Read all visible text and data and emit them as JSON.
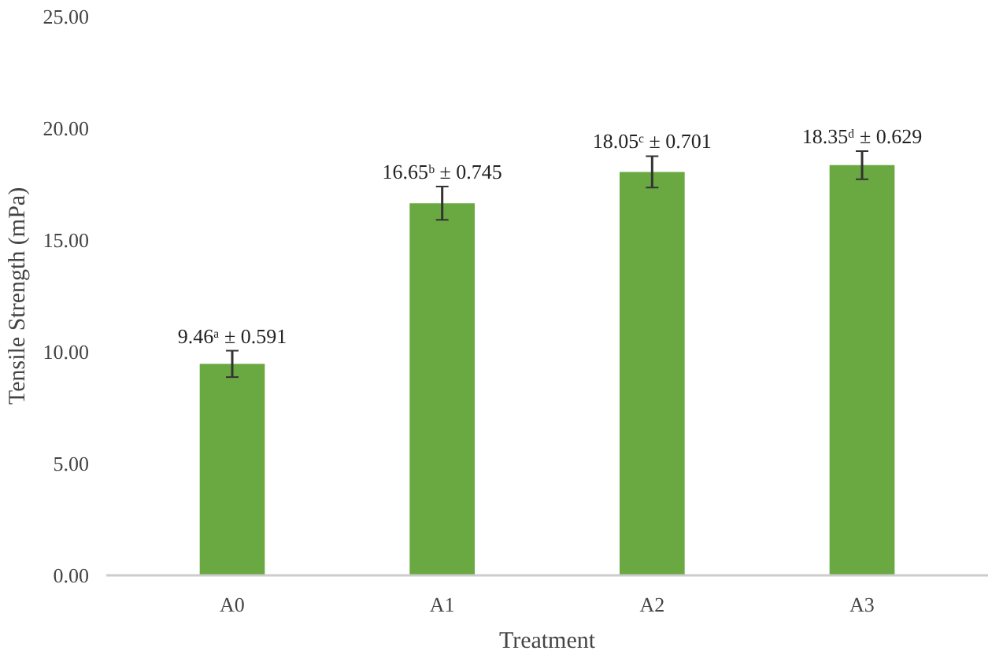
{
  "chart_data": {
    "type": "bar",
    "xlabel": "Treatment",
    "ylabel": "Tensile Strength (mPa)",
    "categories": [
      "A0",
      "A1",
      "A2",
      "A3"
    ],
    "values": [
      9.46,
      16.65,
      18.05,
      18.35
    ],
    "errors": [
      0.591,
      0.745,
      0.701,
      0.629
    ],
    "value_labels": [
      "9.46ᵃ ± 0.591",
      "16.65ᵇ ± 0.745",
      "18.05ᶜ ± 0.701",
      "18.35ᵈ ± 0.629"
    ],
    "color": "#6aa842",
    "ylim": [
      0,
      25
    ],
    "yticks": [
      {
        "value": 0,
        "label": "0.00"
      },
      {
        "value": 5,
        "label": "5.00"
      },
      {
        "value": 10,
        "label": "10.00"
      },
      {
        "value": 15,
        "label": "15.00"
      },
      {
        "value": 20,
        "label": "20.00"
      },
      {
        "value": 25,
        "label": "25.00"
      }
    ],
    "grid": false
  }
}
